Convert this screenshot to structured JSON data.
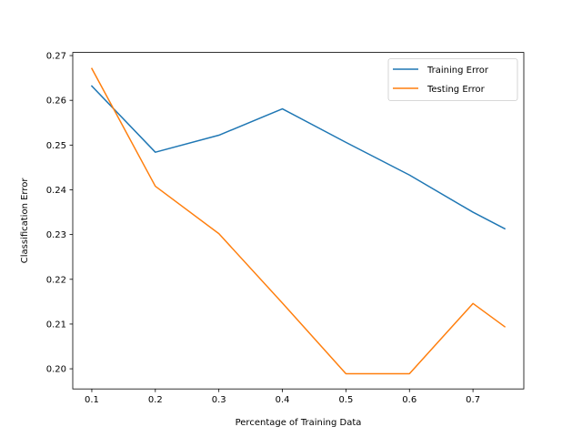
{
  "chart_data": {
    "type": "line",
    "title": "",
    "xlabel": "Percentage of Training Data",
    "ylabel": "Classification Error",
    "x": [
      0.1,
      0.2,
      0.3,
      0.4,
      0.5,
      0.6,
      0.7,
      0.75
    ],
    "xlim": [
      0.07,
      0.78
    ],
    "ylim": [
      0.1955,
      0.2707
    ],
    "xticks": [
      0.1,
      0.2,
      0.3,
      0.4,
      0.5,
      0.6,
      0.7
    ],
    "xtick_labels": [
      "0.1",
      "0.2",
      "0.3",
      "0.4",
      "0.5",
      "0.6",
      "0.7"
    ],
    "yticks": [
      0.2,
      0.21,
      0.22,
      0.23,
      0.24,
      0.25,
      0.26,
      0.27
    ],
    "ytick_labels": [
      "0.20",
      "0.21",
      "0.22",
      "0.23",
      "0.24",
      "0.25",
      "0.26",
      "0.27"
    ],
    "grid": false,
    "legend_position": "top-right",
    "series": [
      {
        "name": "Training Error",
        "color": "#1f77b4",
        "values": [
          0.2632,
          0.2484,
          0.2522,
          0.2581,
          0.2506,
          0.2433,
          0.235,
          0.2313
        ]
      },
      {
        "name": "Testing Error",
        "color": "#ff7f0e",
        "values": [
          0.2671,
          0.2408,
          0.2302,
          0.2147,
          0.1989,
          0.1989,
          0.2146,
          0.2094
        ]
      }
    ]
  }
}
